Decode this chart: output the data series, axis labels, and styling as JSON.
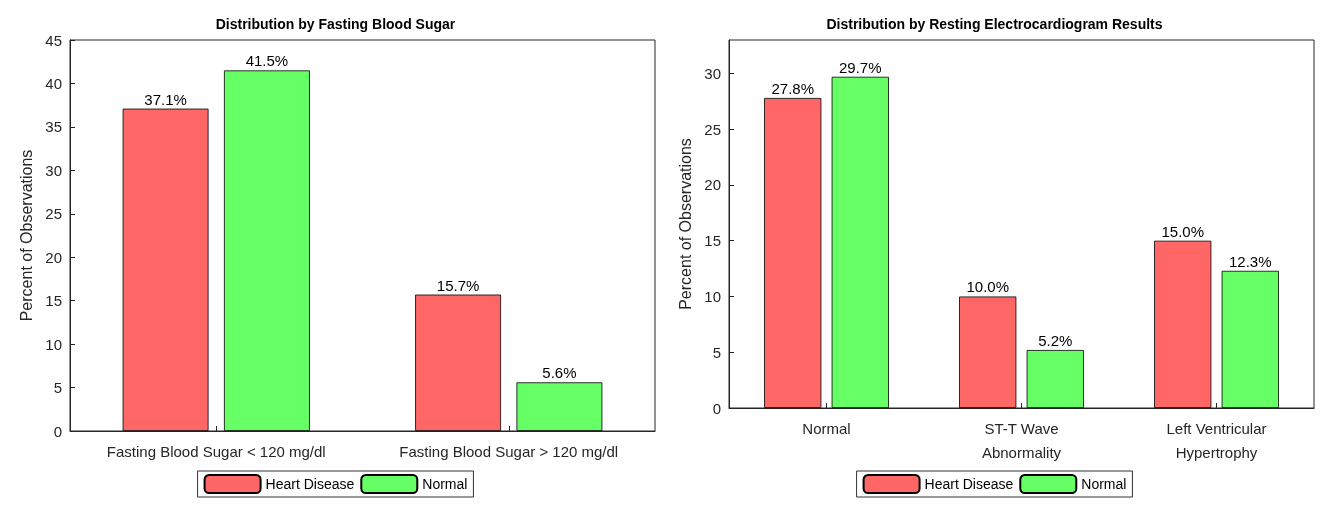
{
  "chart_data": [
    {
      "type": "bar",
      "title": "Distribution by Fasting Blood Sugar",
      "ylabel": "Percent of Observations",
      "categories": [
        "Fasting Blood Sugar < 120 mg/dl",
        "Fasting Blood Sugar > 120 mg/dl"
      ],
      "series": [
        {
          "name": "Heart Disease",
          "color": "#ff6666",
          "values": [
            37.1,
            15.7
          ],
          "value_labels": [
            "37.1%",
            "15.7%"
          ]
        },
        {
          "name": "Normal",
          "color": "#66ff66",
          "values": [
            41.5,
            5.6
          ],
          "value_labels": [
            "41.5%",
            "5.6%"
          ]
        }
      ],
      "ylim": [
        0,
        45
      ],
      "yticks": [
        0,
        5,
        10,
        15,
        20,
        25,
        30,
        35,
        40,
        45
      ],
      "grid": false,
      "legend": "bottom"
    },
    {
      "type": "bar",
      "title": "Distribution by Resting Electrocardiogram Results",
      "ylabel": "Percent of Observations",
      "categories": [
        "Normal",
        "ST-T Wave\nAbnormality",
        "Left Ventricular\nHypertrophy"
      ],
      "series": [
        {
          "name": "Heart Disease",
          "color": "#ff6666",
          "values": [
            27.8,
            10.0,
            15.0
          ],
          "value_labels": [
            "27.8%",
            "10.0%",
            "15.0%"
          ]
        },
        {
          "name": "Normal",
          "color": "#66ff66",
          "values": [
            29.7,
            5.2,
            12.3
          ],
          "value_labels": [
            "29.7%",
            "5.2%",
            "12.3%"
          ]
        }
      ],
      "ylim": [
        0,
        33
      ],
      "yticks": [
        0,
        5,
        10,
        15,
        20,
        25,
        30
      ],
      "grid": false,
      "legend": "bottom"
    }
  ]
}
